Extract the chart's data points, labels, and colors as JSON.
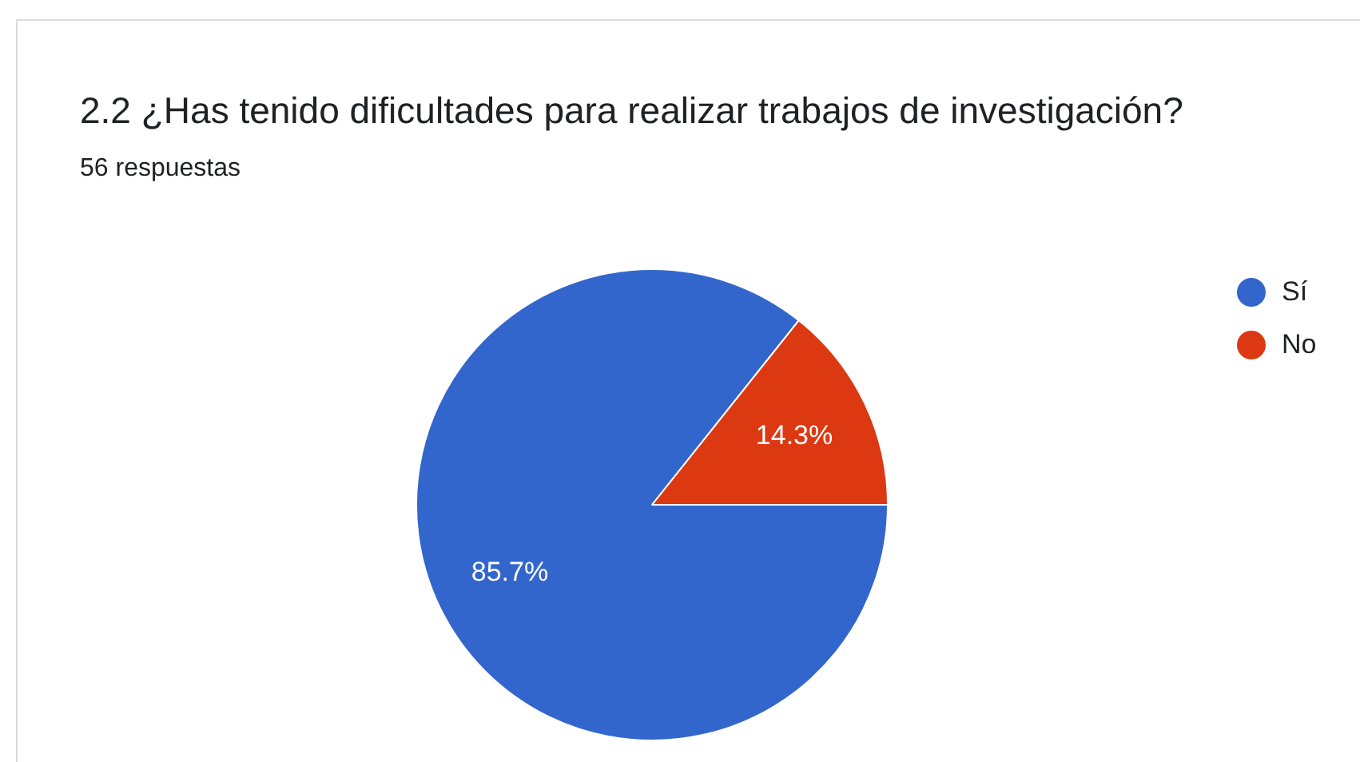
{
  "chart_data": {
    "type": "pie",
    "title": "2.2 ¿Has tenido dificultades para realizar trabajos de investigación?",
    "subtitle": "56 respuestas",
    "categories": [
      "Sí",
      "No"
    ],
    "values": [
      85.7,
      14.3
    ],
    "colors": [
      "#3366cc",
      "#dc3912"
    ],
    "value_labels": [
      "85.7%",
      "14.3%"
    ],
    "legend": "top right"
  }
}
